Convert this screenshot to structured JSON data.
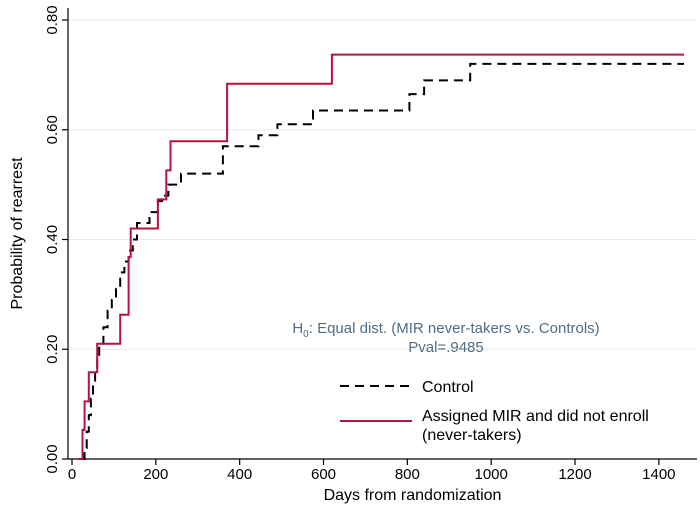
{
  "chart_data": {
    "type": "line",
    "step": true,
    "xlabel": "Days from randomization",
    "ylabel": "Probability of rearrest",
    "xlim": [
      0,
      1460
    ],
    "ylim": [
      0,
      0.8
    ],
    "xticks": [
      0,
      200,
      400,
      600,
      800,
      1000,
      1200,
      1400
    ],
    "yticks": [
      0.0,
      0.2,
      0.4,
      0.6,
      0.8
    ],
    "ytick_labels": [
      "0.00",
      "0.20",
      "0.40",
      "0.60",
      "0.80"
    ],
    "grid": "horizontal",
    "legend_placement": "bottom-right",
    "annotation": {
      "hypothesis_prefix": "H",
      "hypothesis_sub": "0",
      "hypothesis_text": ": Equal dist. (MIR never-takers vs. Controls)",
      "pval_text": "Pval=.9485",
      "color": "#4f6d86"
    },
    "series": [
      {
        "name": "Control",
        "style": "dashed",
        "color": "#000000",
        "x": [
          25,
          30,
          35,
          40,
          45,
          50,
          55,
          60,
          65,
          75,
          85,
          95,
          105,
          115,
          125,
          135,
          145,
          155,
          165,
          185,
          205,
          215,
          230,
          260,
          300,
          360,
          410,
          445,
          490,
          545,
          575,
          805,
          840,
          950,
          1460
        ],
        "y": [
          0.0,
          0.02,
          0.05,
          0.08,
          0.11,
          0.14,
          0.16,
          0.18,
          0.21,
          0.24,
          0.27,
          0.29,
          0.31,
          0.34,
          0.36,
          0.38,
          0.4,
          0.43,
          0.43,
          0.45,
          0.47,
          0.48,
          0.5,
          0.52,
          0.52,
          0.57,
          0.57,
          0.59,
          0.61,
          0.61,
          0.635,
          0.665,
          0.69,
          0.72,
          0.72
        ]
      },
      {
        "name": "Assigned MIR and did not enroll",
        "name_line2": "(never-takers)",
        "style": "solid",
        "color": "#b5143f",
        "x": [
          15,
          25,
          30,
          40,
          60,
          115,
          135,
          140,
          150,
          205,
          225,
          235,
          370,
          620,
          1460
        ],
        "y": [
          0.0,
          0.053,
          0.105,
          0.158,
          0.21,
          0.263,
          0.368,
          0.42,
          0.42,
          0.473,
          0.526,
          0.579,
          0.684,
          0.737,
          0.737
        ]
      }
    ]
  }
}
